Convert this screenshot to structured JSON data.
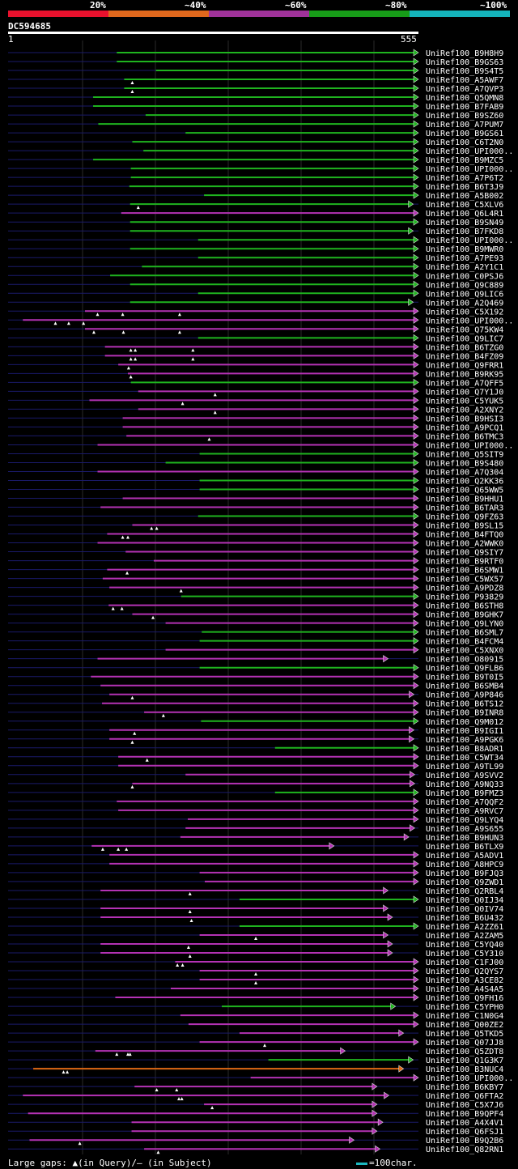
{
  "legend": {
    "segments": [
      {
        "label": "20%",
        "color": "#e8112d"
      },
      {
        "label": "~40%",
        "color": "#e0681d"
      },
      {
        "label": "~60%",
        "color": "#a0329a"
      },
      {
        "label": "~80%",
        "color": "#179c18"
      },
      {
        "label": "~100%",
        "color": "#14b4bc"
      }
    ]
  },
  "query": {
    "id": "DC594685",
    "start": "1",
    "end": "555"
  },
  "footer": {
    "gaps_text": "Large gaps: ▲(in Query)/— (in Subject)",
    "scale_text": "=100char."
  },
  "chart_data": {
    "type": "alignment",
    "query_length": 555,
    "hits": [
      {
        "name": "UniRef100_B9H8H9",
        "s": 147,
        "e": 555,
        "color": "green",
        "marks": []
      },
      {
        "name": "UniRef100_B9GS63",
        "s": 147,
        "e": 555,
        "color": "green",
        "marks": []
      },
      {
        "name": "UniRef100_B9S4T5",
        "s": 200,
        "e": 555,
        "color": "green",
        "marks": []
      },
      {
        "name": "UniRef100_A5AWF7",
        "s": 157,
        "e": 555,
        "color": "green",
        "marks": [
          168
        ]
      },
      {
        "name": "UniRef100_A7QVP3",
        "s": 157,
        "e": 555,
        "color": "green",
        "marks": [
          168
        ]
      },
      {
        "name": "UniRef100_Q5QMN8",
        "s": 115,
        "e": 555,
        "color": "green",
        "marks": []
      },
      {
        "name": "UniRef100_B7FAB9",
        "s": 115,
        "e": 555,
        "color": "green",
        "marks": []
      },
      {
        "name": "UniRef100_B9SZ60",
        "s": 186,
        "e": 555,
        "color": "green",
        "marks": []
      },
      {
        "name": "UniRef100_A7PUM7",
        "s": 122,
        "e": 555,
        "color": "green",
        "marks": []
      },
      {
        "name": "UniRef100_B9GS61",
        "s": 240,
        "e": 555,
        "color": "green",
        "marks": []
      },
      {
        "name": "UniRef100_C6T2N0",
        "s": 168,
        "e": 555,
        "color": "green",
        "marks": []
      },
      {
        "name": "UniRef100_UPI000..",
        "s": 183,
        "e": 555,
        "color": "green",
        "marks": []
      },
      {
        "name": "UniRef100_B9MZC5",
        "s": 115,
        "e": 555,
        "color": "green",
        "marks": []
      },
      {
        "name": "UniRef100_UPI000..",
        "s": 166,
        "e": 555,
        "color": "green",
        "marks": []
      },
      {
        "name": "UniRef100_A7P6T2",
        "s": 166,
        "e": 555,
        "color": "green",
        "marks": []
      },
      {
        "name": "UniRef100_B6T3J9",
        "s": 164,
        "e": 555,
        "color": "green",
        "marks": []
      },
      {
        "name": "UniRef100_A5B002",
        "s": 265,
        "e": 555,
        "color": "green",
        "marks": []
      },
      {
        "name": "UniRef100_C5XLV6",
        "s": 165,
        "e": 548,
        "color": "green",
        "marks": [
          176
        ]
      },
      {
        "name": "UniRef100_Q6L4R1",
        "s": 153,
        "e": 555,
        "color": "magenta",
        "marks": []
      },
      {
        "name": "UniRef100_B9SN49",
        "s": 165,
        "e": 555,
        "color": "green",
        "marks": []
      },
      {
        "name": "UniRef100_B7FKD8",
        "s": 165,
        "e": 548,
        "color": "green",
        "marks": []
      },
      {
        "name": "UniRef100_UPI000..",
        "s": 257,
        "e": 555,
        "color": "green",
        "marks": []
      },
      {
        "name": "UniRef100_B9MWR0",
        "s": 165,
        "e": 555,
        "color": "green",
        "marks": []
      },
      {
        "name": "UniRef100_A7PE93",
        "s": 257,
        "e": 555,
        "color": "green",
        "marks": []
      },
      {
        "name": "UniRef100_A2Y1C1",
        "s": 181,
        "e": 555,
        "color": "green",
        "marks": []
      },
      {
        "name": "UniRef100_C0PSJ6",
        "s": 138,
        "e": 555,
        "color": "green",
        "marks": []
      },
      {
        "name": "UniRef100_Q9C889",
        "s": 165,
        "e": 555,
        "color": "green",
        "marks": []
      },
      {
        "name": "UniRef100_Q9LIC6",
        "s": 257,
        "e": 555,
        "color": "green",
        "marks": []
      },
      {
        "name": "UniRef100_A2Q469",
        "s": 165,
        "e": 548,
        "color": "green",
        "marks": []
      },
      {
        "name": "UniRef100_C5X192",
        "s": 104,
        "e": 555,
        "color": "magenta",
        "marks": [
          121,
          155,
          232
        ]
      },
      {
        "name": "UniRef100_UPI000..",
        "s": 20,
        "e": 555,
        "color": "magenta",
        "marks": [
          64,
          82,
          102
        ]
      },
      {
        "name": "UniRef100_Q75KW4",
        "s": 104,
        "e": 555,
        "color": "magenta",
        "marks": [
          116,
          156,
          232
        ]
      },
      {
        "name": "UniRef100_Q9LIC7",
        "s": 257,
        "e": 555,
        "color": "green",
        "marks": []
      },
      {
        "name": "UniRef100_B6TZG0",
        "s": 131,
        "e": 555,
        "color": "magenta",
        "marks": [
          166,
          172,
          250
        ]
      },
      {
        "name": "UniRef100_B4FZ09",
        "s": 131,
        "e": 555,
        "color": "magenta",
        "marks": [
          166,
          172,
          250
        ]
      },
      {
        "name": "UniRef100_Q9FRR1",
        "s": 149,
        "e": 555,
        "color": "magenta",
        "marks": [
          163
        ]
      },
      {
        "name": "UniRef100_B9RK95",
        "s": 162,
        "e": 555,
        "color": "magenta",
        "marks": [
          166
        ]
      },
      {
        "name": "UniRef100_A7QFF5",
        "s": 166,
        "e": 555,
        "color": "green",
        "marks": []
      },
      {
        "name": "UniRef100_Q7Y1J0",
        "s": 176,
        "e": 555,
        "color": "magenta",
        "marks": [
          280
        ]
      },
      {
        "name": "UniRef100_C5YUK5",
        "s": 110,
        "e": 555,
        "color": "magenta",
        "marks": [
          236
        ]
      },
      {
        "name": "UniRef100_A2XNY2",
        "s": 176,
        "e": 555,
        "color": "magenta",
        "marks": [
          280
        ]
      },
      {
        "name": "UniRef100_B9HSI3",
        "s": 155,
        "e": 555,
        "color": "magenta",
        "marks": []
      },
      {
        "name": "UniRef100_A9PCQ1",
        "s": 155,
        "e": 555,
        "color": "magenta",
        "marks": []
      },
      {
        "name": "UniRef100_B6TMC3",
        "s": 160,
        "e": 555,
        "color": "magenta",
        "marks": [
          272
        ]
      },
      {
        "name": "UniRef100_UPI000..",
        "s": 121,
        "e": 555,
        "color": "magenta",
        "marks": []
      },
      {
        "name": "UniRef100_Q5SIT9",
        "s": 259,
        "e": 555,
        "color": "green",
        "marks": []
      },
      {
        "name": "UniRef100_B9S480",
        "s": 213,
        "e": 555,
        "color": "green",
        "marks": []
      },
      {
        "name": "UniRef100_A7Q304",
        "s": 121,
        "e": 555,
        "color": "magenta",
        "marks": []
      },
      {
        "name": "UniRef100_Q2KK36",
        "s": 259,
        "e": 555,
        "color": "green",
        "marks": []
      },
      {
        "name": "UniRef100_Q65WW5",
        "s": 259,
        "e": 555,
        "color": "green",
        "marks": []
      },
      {
        "name": "UniRef100_B9HHU1",
        "s": 155,
        "e": 555,
        "color": "magenta",
        "marks": []
      },
      {
        "name": "UniRef100_B6TAR3",
        "s": 125,
        "e": 555,
        "color": "magenta",
        "marks": []
      },
      {
        "name": "UniRef100_Q9FZ63",
        "s": 257,
        "e": 555,
        "color": "green",
        "marks": []
      },
      {
        "name": "UniRef100_B9SL15",
        "s": 168,
        "e": 555,
        "color": "magenta",
        "marks": [
          194,
          201
        ]
      },
      {
        "name": "UniRef100_B4FTQ0",
        "s": 134,
        "e": 555,
        "color": "magenta",
        "marks": [
          155,
          162
        ]
      },
      {
        "name": "UniRef100_A2WWK0",
        "s": 121,
        "e": 555,
        "color": "magenta",
        "marks": []
      },
      {
        "name": "UniRef100_Q9SIY7",
        "s": 159,
        "e": 555,
        "color": "magenta",
        "marks": []
      },
      {
        "name": "UniRef100_B9RTF0",
        "s": 197,
        "e": 555,
        "color": "magenta",
        "marks": []
      },
      {
        "name": "UniRef100_B6SMW1",
        "s": 134,
        "e": 555,
        "color": "magenta",
        "marks": [
          161
        ]
      },
      {
        "name": "UniRef100_C5WX57",
        "s": 128,
        "e": 555,
        "color": "magenta",
        "marks": []
      },
      {
        "name": "UniRef100_A9PDZ8",
        "s": 137,
        "e": 555,
        "color": "magenta",
        "marks": [
          234
        ]
      },
      {
        "name": "UniRef100_P93829",
        "s": 234,
        "e": 555,
        "color": "green",
        "marks": []
      },
      {
        "name": "UniRef100_B6STH8",
        "s": 136,
        "e": 555,
        "color": "magenta",
        "marks": [
          142,
          154
        ]
      },
      {
        "name": "UniRef100_B9GHK7",
        "s": 168,
        "e": 555,
        "color": "magenta",
        "marks": [
          196
        ]
      },
      {
        "name": "UniRef100_Q9LYN0",
        "s": 213,
        "e": 555,
        "color": "magenta",
        "marks": []
      },
      {
        "name": "UniRef100_B6SML7",
        "s": 262,
        "e": 555,
        "color": "green",
        "marks": []
      },
      {
        "name": "UniRef100_B4FCM4",
        "s": 259,
        "e": 555,
        "color": "green",
        "marks": []
      },
      {
        "name": "UniRef100_C5XNX0",
        "s": 213,
        "e": 555,
        "color": "magenta",
        "marks": []
      },
      {
        "name": "UniRef100_O80915",
        "s": 121,
        "e": 514,
        "color": "magenta",
        "marks": []
      },
      {
        "name": "UniRef100_Q9FLB6",
        "s": 259,
        "e": 555,
        "color": "green",
        "marks": []
      },
      {
        "name": "UniRef100_B9T0I5",
        "s": 112,
        "e": 555,
        "color": "magenta",
        "marks": []
      },
      {
        "name": "UniRef100_B6SMB4",
        "s": 125,
        "e": 555,
        "color": "magenta",
        "marks": []
      },
      {
        "name": "UniRef100_A9P846",
        "s": 137,
        "e": 549,
        "color": "magenta",
        "marks": [
          168
        ]
      },
      {
        "name": "UniRef100_B6TS12",
        "s": 127,
        "e": 555,
        "color": "magenta",
        "marks": []
      },
      {
        "name": "UniRef100_B9INR8",
        "s": 184,
        "e": 555,
        "color": "magenta",
        "marks": [
          210
        ]
      },
      {
        "name": "UniRef100_Q9M012",
        "s": 261,
        "e": 555,
        "color": "green",
        "marks": []
      },
      {
        "name": "UniRef100_B9IGI1",
        "s": 137,
        "e": 549,
        "color": "magenta",
        "marks": [
          171
        ]
      },
      {
        "name": "UniRef100_A9PGK6",
        "s": 137,
        "e": 549,
        "color": "magenta",
        "marks": [
          168
        ]
      },
      {
        "name": "UniRef100_B8ADR1",
        "s": 361,
        "e": 555,
        "color": "green",
        "marks": []
      },
      {
        "name": "UniRef100_C5WT34",
        "s": 149,
        "e": 555,
        "color": "magenta",
        "marks": [
          188
        ]
      },
      {
        "name": "UniRef100_A9TL99",
        "s": 149,
        "e": 555,
        "color": "magenta",
        "marks": []
      },
      {
        "name": "UniRef100_A9SVV2",
        "s": 240,
        "e": 550,
        "color": "magenta",
        "marks": []
      },
      {
        "name": "UniRef100_A9NQ33",
        "s": 168,
        "e": 550,
        "color": "magenta",
        "marks": [
          168
        ]
      },
      {
        "name": "UniRef100_B9FMZ3",
        "s": 361,
        "e": 555,
        "color": "green",
        "marks": []
      },
      {
        "name": "UniRef100_A7QQF2",
        "s": 147,
        "e": 555,
        "color": "magenta",
        "marks": []
      },
      {
        "name": "UniRef100_A9RVC7",
        "s": 149,
        "e": 555,
        "color": "magenta",
        "marks": []
      },
      {
        "name": "UniRef100_Q9LYQ4",
        "s": 243,
        "e": 555,
        "color": "magenta",
        "marks": []
      },
      {
        "name": "UniRef100_A9S655",
        "s": 240,
        "e": 550,
        "color": "magenta",
        "marks": []
      },
      {
        "name": "UniRef100_B9HUN3",
        "s": 233,
        "e": 542,
        "color": "magenta",
        "marks": []
      },
      {
        "name": "UniRef100_B6TLX9",
        "s": 113,
        "e": 441,
        "color": "magenta",
        "marks": [
          128,
          149,
          160
        ]
      },
      {
        "name": "UniRef100_A5ADV1",
        "s": 137,
        "e": 555,
        "color": "magenta",
        "marks": []
      },
      {
        "name": "UniRef100_A8HPC9",
        "s": 137,
        "e": 555,
        "color": "magenta",
        "marks": []
      },
      {
        "name": "UniRef100_B9FJQ3",
        "s": 259,
        "e": 555,
        "color": "magenta",
        "marks": []
      },
      {
        "name": "UniRef100_Q9ZWD1",
        "s": 266,
        "e": 555,
        "color": "magenta",
        "marks": []
      },
      {
        "name": "UniRef100_Q2RBL4",
        "s": 125,
        "e": 514,
        "color": "magenta",
        "marks": [
          246
        ]
      },
      {
        "name": "UniRef100_Q0IJ34",
        "s": 313,
        "e": 555,
        "color": "green",
        "marks": []
      },
      {
        "name": "UniRef100_Q0IV74",
        "s": 125,
        "e": 514,
        "color": "magenta",
        "marks": [
          246
        ]
      },
      {
        "name": "UniRef100_B6U432",
        "s": 125,
        "e": 520,
        "color": "magenta",
        "marks": [
          248
        ]
      },
      {
        "name": "UniRef100_A2ZZ61",
        "s": 313,
        "e": 555,
        "color": "green",
        "marks": []
      },
      {
        "name": "UniRef100_A2ZAM5",
        "s": 259,
        "e": 514,
        "color": "magenta",
        "marks": [
          335
        ]
      },
      {
        "name": "UniRef100_C5YQ40",
        "s": 125,
        "e": 520,
        "color": "magenta",
        "marks": [
          244
        ]
      },
      {
        "name": "UniRef100_C5Y310",
        "s": 125,
        "e": 520,
        "color": "magenta",
        "marks": [
          246
        ]
      },
      {
        "name": "UniRef100_C1FJ00",
        "s": 226,
        "e": 555,
        "color": "magenta",
        "marks": [
          229,
          236
        ]
      },
      {
        "name": "UniRef100_Q2QYS7",
        "s": 259,
        "e": 555,
        "color": "magenta",
        "marks": [
          335
        ]
      },
      {
        "name": "UniRef100_A3CE82",
        "s": 259,
        "e": 555,
        "color": "magenta",
        "marks": [
          335
        ]
      },
      {
        "name": "UniRef100_A4S4A5",
        "s": 220,
        "e": 555,
        "color": "magenta",
        "marks": []
      },
      {
        "name": "UniRef100_Q9FH16",
        "s": 145,
        "e": 555,
        "color": "magenta",
        "marks": []
      },
      {
        "name": "UniRef100_C5YPH0",
        "s": 289,
        "e": 524,
        "color": "green",
        "marks": []
      },
      {
        "name": "UniRef100_C1N0G4",
        "s": 233,
        "e": 555,
        "color": "magenta",
        "marks": []
      },
      {
        "name": "UniRef100_Q00ZE2",
        "s": 244,
        "e": 555,
        "color": "magenta",
        "marks": []
      },
      {
        "name": "UniRef100_Q5TKD5",
        "s": 313,
        "e": 535,
        "color": "magenta",
        "marks": []
      },
      {
        "name": "UniRef100_Q07JJ8",
        "s": 259,
        "e": 555,
        "color": "magenta",
        "marks": [
          347
        ]
      },
      {
        "name": "UniRef100_Q5ZDT8",
        "s": 118,
        "e": 456,
        "color": "magenta",
        "marks": [
          147,
          162,
          165
        ]
      },
      {
        "name": "UniRef100_Q1G3K7",
        "s": 352,
        "e": 548,
        "color": "green",
        "marks": []
      },
      {
        "name": "UniRef100_B3NUC4",
        "s": 34,
        "e": 535,
        "color": "orange",
        "marks": [
          75,
          80
        ]
      },
      {
        "name": "UniRef100_UPI000..",
        "s": 328,
        "e": 555,
        "color": "magenta",
        "marks": []
      },
      {
        "name": "UniRef100_B6KBY7",
        "s": 171,
        "e": 499,
        "color": "magenta",
        "marks": [
          201,
          228
        ]
      },
      {
        "name": "UniRef100_Q6FTA2",
        "s": 20,
        "e": 515,
        "color": "magenta",
        "marks": [
          231,
          235
        ]
      },
      {
        "name": "UniRef100_C5X7J6",
        "s": 265,
        "e": 499,
        "color": "magenta",
        "marks": [
          276
        ]
      },
      {
        "name": "UniRef100_B9QPF4",
        "s": 27,
        "e": 499,
        "color": "magenta",
        "marks": []
      },
      {
        "name": "UniRef100_A4X4V1",
        "s": 167,
        "e": 507,
        "color": "magenta",
        "marks": []
      },
      {
        "name": "UniRef100_Q6FSJ1",
        "s": 167,
        "e": 499,
        "color": "magenta",
        "marks": []
      },
      {
        "name": "UniRef100_B9Q2B6",
        "s": 29,
        "e": 468,
        "color": "magenta",
        "marks": [
          97
        ]
      },
      {
        "name": "UniRef100_Q82RN1",
        "s": 184,
        "e": 503,
        "color": "magenta",
        "marks": [
          203
        ]
      }
    ]
  }
}
